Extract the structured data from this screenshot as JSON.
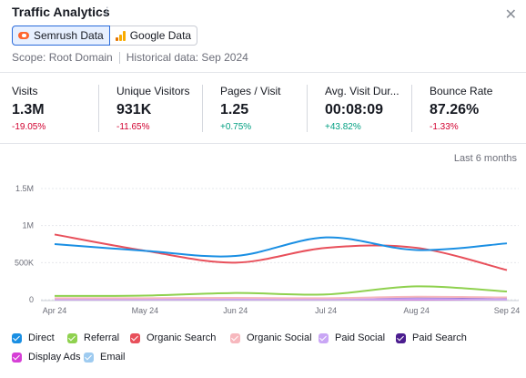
{
  "header": {
    "title": "Traffic Analytics",
    "info_icon": "info-icon",
    "close_icon": "close-icon"
  },
  "sources": {
    "semrush_label": "Semrush Data",
    "google_label": "Google Data",
    "active": "Semrush Data"
  },
  "scope": {
    "scope_text": "Scope: Root Domain",
    "historical_text": "Historical data: Sep 2024"
  },
  "metrics": [
    {
      "label": "Visits",
      "value": "1.3M",
      "delta": "-19.05%",
      "trend": "negative"
    },
    {
      "label": "Unique Visitors",
      "value": "931K",
      "delta": "-11.65%",
      "trend": "negative"
    },
    {
      "label": "Pages / Visit",
      "value": "1.25",
      "delta": "+0.75%",
      "trend": "positive"
    },
    {
      "label": "Avg. Visit Dur...",
      "value": "00:08:09",
      "delta": "+43.82%",
      "trend": "positive"
    },
    {
      "label": "Bounce Rate",
      "value": "87.26%",
      "delta": "-1.33%",
      "trend": "negative"
    }
  ],
  "period_label": "Last 6 months",
  "colors": {
    "direct": "#1a8fe3",
    "referral": "#8fd14f",
    "organic_search": "#e8505b",
    "organic_social": "#f7b8be",
    "paid_social": "#c9a6f5",
    "paid_search": "#4b1d8f",
    "display_ads": "#d63fd6",
    "email": "#9ecbf0"
  },
  "chart_data": {
    "type": "line",
    "x": [
      "Apr 24",
      "May 24",
      "Jun 24",
      "Jul 24",
      "Aug 24",
      "Sep 24"
    ],
    "ylim": [
      0,
      1500000
    ],
    "yticks": [
      "0",
      "500K",
      "1M",
      "1.5M"
    ],
    "ytick_values": [
      0,
      500000,
      1000000,
      1500000
    ],
    "grid": true,
    "legend_position": "bottom",
    "series": [
      {
        "name": "Direct",
        "color": "#1a8fe3",
        "values": [
          750000,
          660000,
          590000,
          840000,
          670000,
          760000
        ]
      },
      {
        "name": "Referral",
        "color": "#8fd14f",
        "values": [
          50000,
          55000,
          90000,
          70000,
          180000,
          110000
        ]
      },
      {
        "name": "Organic Search",
        "color": "#e8505b",
        "values": [
          880000,
          660000,
          500000,
          700000,
          700000,
          400000
        ]
      },
      {
        "name": "Organic Social",
        "color": "#f7b8be",
        "values": [
          20000,
          20000,
          25000,
          20000,
          40000,
          30000
        ]
      },
      {
        "name": "Paid Social",
        "color": "#c9a6f5",
        "values": [
          5000,
          5000,
          5000,
          5000,
          10000,
          5000
        ]
      },
      {
        "name": "Paid Search",
        "color": "#4b1d8f",
        "values": [
          10000,
          10000,
          15000,
          15000,
          15000,
          10000
        ]
      },
      {
        "name": "Display Ads",
        "color": "#d63fd6",
        "values": [
          5000,
          5000,
          5000,
          5000,
          5000,
          5000
        ]
      },
      {
        "name": "Email",
        "color": "#9ecbf0",
        "values": [
          10000,
          10000,
          10000,
          10000,
          15000,
          10000
        ]
      }
    ]
  }
}
